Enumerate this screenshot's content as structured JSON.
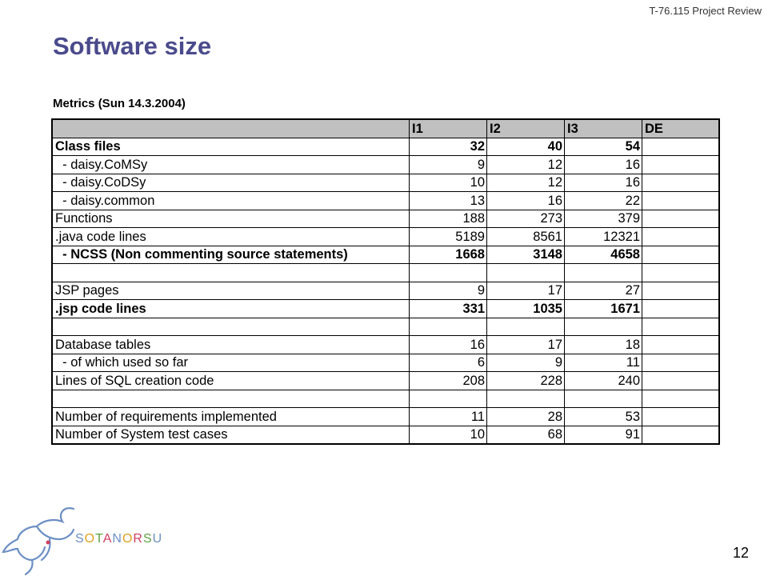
{
  "header_note": "T-76.115 Project Review",
  "title": "Software size",
  "subtitle": "Metrics (Sun 14.3.2004)",
  "table": {
    "columns": [
      "",
      "I1",
      "I2",
      "I3",
      "DE"
    ],
    "rows": [
      {
        "label": "Class files",
        "i1": "32",
        "i2": "40",
        "i3": "54",
        "de": "",
        "bold": true
      },
      {
        "label": "  - daisy.CoMSy",
        "i1": "9",
        "i2": "12",
        "i3": "16",
        "de": "",
        "bold": false
      },
      {
        "label": "  - daisy.CoDSy",
        "i1": "10",
        "i2": "12",
        "i3": "16",
        "de": "",
        "bold": false
      },
      {
        "label": "  - daisy.common",
        "i1": "13",
        "i2": "16",
        "i3": "22",
        "de": "",
        "bold": false
      },
      {
        "label": "Functions",
        "i1": "188",
        "i2": "273",
        "i3": "379",
        "de": "",
        "bold": false
      },
      {
        "label": ".java code lines",
        "i1": "5189",
        "i2": "8561",
        "i3": "12321",
        "de": "",
        "bold": false
      },
      {
        "label": "  - NCSS (Non commenting source statements)",
        "i1": "1668",
        "i2": "3148",
        "i3": "4658",
        "de": "",
        "bold": true
      },
      {
        "label": "",
        "i1": "",
        "i2": "",
        "i3": "",
        "de": "",
        "bold": false
      },
      {
        "label": "JSP pages",
        "i1": "9",
        "i2": "17",
        "i3": "27",
        "de": "",
        "bold": false
      },
      {
        "label": ".jsp code lines",
        "i1": "331",
        "i2": "1035",
        "i3": "1671",
        "de": "",
        "bold": true
      },
      {
        "label": "",
        "i1": "",
        "i2": "",
        "i3": "",
        "de": "",
        "bold": false
      },
      {
        "label": "Database tables",
        "i1": "16",
        "i2": "17",
        "i3": "18",
        "de": "",
        "bold": false
      },
      {
        "label": "  - of which used so far",
        "i1": "6",
        "i2": "9",
        "i3": "11",
        "de": "",
        "bold": false
      },
      {
        "label": "Lines of SQL creation code",
        "i1": "208",
        "i2": "228",
        "i3": "240",
        "de": "",
        "bold": false
      },
      {
        "label": "",
        "i1": "",
        "i2": "",
        "i3": "",
        "de": "",
        "bold": false
      },
      {
        "label": "Number of requirements implemented",
        "i1": "11",
        "i2": "28",
        "i3": "53",
        "de": "",
        "bold": false
      },
      {
        "label": "Number of System test cases",
        "i1": "10",
        "i2": "68",
        "i3": "91",
        "de": "",
        "bold": false
      }
    ]
  },
  "logo": {
    "text": "SOTANORSU",
    "icon": "elephant-logo-icon"
  },
  "page_number": "12"
}
